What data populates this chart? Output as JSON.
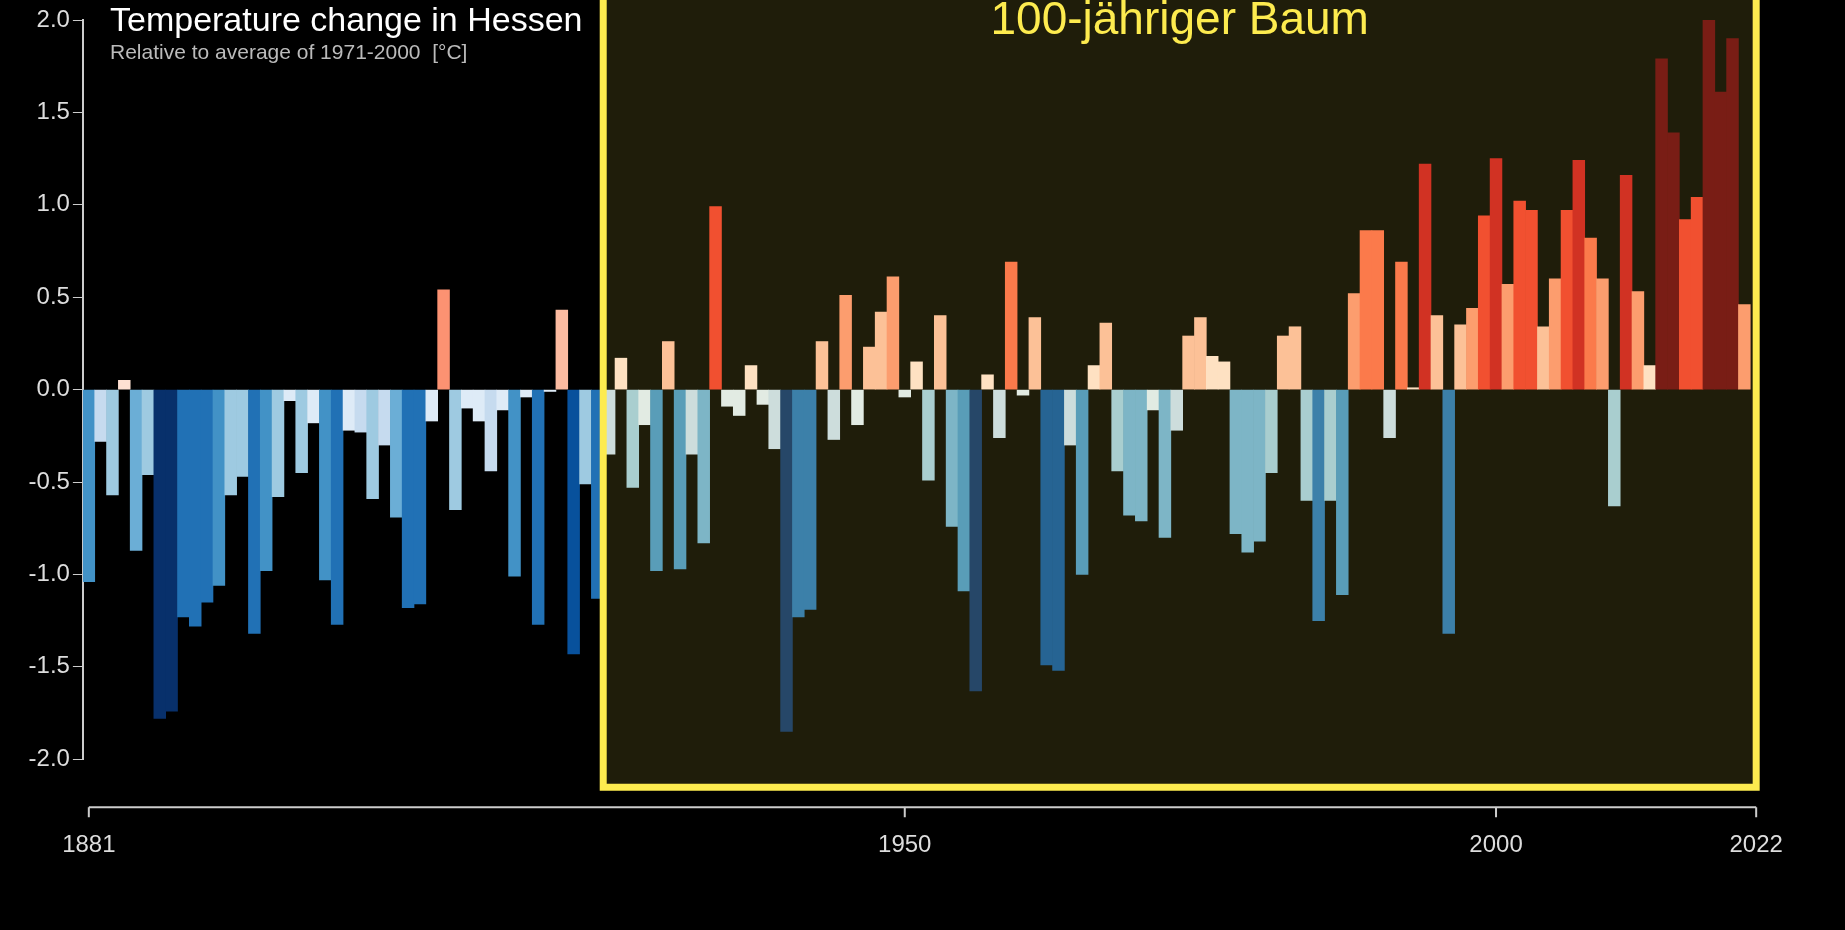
{
  "chart_data": {
    "type": "bar",
    "title": "Temperature change in Hessen",
    "subtitle": "Relative to average of 1971-2000  [°C]",
    "x": [
      1881,
      1882,
      1883,
      1884,
      1885,
      1886,
      1887,
      1888,
      1889,
      1890,
      1891,
      1892,
      1893,
      1894,
      1895,
      1896,
      1897,
      1898,
      1899,
      1900,
      1901,
      1902,
      1903,
      1904,
      1905,
      1906,
      1907,
      1908,
      1909,
      1910,
      1911,
      1912,
      1913,
      1914,
      1915,
      1916,
      1917,
      1918,
      1919,
      1920,
      1921,
      1922,
      1923,
      1924,
      1925,
      1926,
      1927,
      1928,
      1929,
      1930,
      1931,
      1932,
      1933,
      1934,
      1935,
      1936,
      1937,
      1938,
      1939,
      1940,
      1941,
      1942,
      1943,
      1944,
      1945,
      1946,
      1947,
      1948,
      1949,
      1950,
      1951,
      1952,
      1953,
      1954,
      1955,
      1956,
      1957,
      1958,
      1959,
      1960,
      1961,
      1962,
      1963,
      1964,
      1965,
      1966,
      1967,
      1968,
      1969,
      1970,
      1971,
      1972,
      1973,
      1974,
      1975,
      1976,
      1977,
      1978,
      1979,
      1980,
      1981,
      1982,
      1983,
      1984,
      1985,
      1986,
      1987,
      1988,
      1989,
      1990,
      1991,
      1992,
      1993,
      1994,
      1995,
      1996,
      1997,
      1998,
      1999,
      2000,
      2001,
      2002,
      2003,
      2004,
      2005,
      2006,
      2007,
      2008,
      2009,
      2010,
      2011,
      2012,
      2013,
      2014,
      2015,
      2016,
      2017,
      2018,
      2019,
      2020,
      2021
    ],
    "values": [
      -1.04,
      -0.28,
      -0.57,
      0.05,
      -0.87,
      -0.46,
      -1.78,
      -1.74,
      -1.23,
      -1.28,
      -1.15,
      -1.06,
      -0.57,
      -0.47,
      -1.32,
      -0.98,
      -0.58,
      -0.06,
      -0.45,
      -0.18,
      -1.03,
      -1.27,
      -0.22,
      -0.23,
      -0.59,
      -0.3,
      -0.69,
      -1.18,
      -1.16,
      -0.17,
      0.54,
      -0.65,
      -0.1,
      -0.17,
      -0.44,
      -0.11,
      -1.01,
      -0.04,
      -1.27,
      -0.01,
      0.43,
      -1.43,
      -0.51,
      -1.13,
      -0.35,
      0.17,
      -0.53,
      -0.19,
      -0.98,
      0.26,
      -0.97,
      -0.35,
      -0.83,
      0.99,
      -0.09,
      -0.14,
      0.13,
      -0.08,
      -0.32,
      -1.85,
      -1.23,
      -1.19,
      0.26,
      -0.27,
      0.51,
      -0.19,
      0.23,
      0.42,
      0.61,
      -0.04,
      0.15,
      -0.49,
      0.4,
      -0.74,
      -1.09,
      -1.63,
      0.08,
      -0.26,
      0.69,
      -0.03,
      0.39,
      -1.49,
      -1.52,
      -0.3,
      -1.0,
      0.13,
      0.36,
      -0.44,
      -0.68,
      -0.71,
      -0.11,
      -0.8,
      -0.22,
      0.29,
      0.39,
      0.18,
      0.15,
      -0.78,
      -0.88,
      -0.82,
      -0.45,
      0.29,
      0.34,
      -0.6,
      -1.25,
      -0.6,
      -1.11,
      0.52,
      0.86,
      0.86,
      -0.26,
      0.69,
      0.01,
      1.22,
      0.4,
      -1.32,
      0.35,
      0.44,
      0.94,
      1.25,
      0.57,
      1.02,
      0.97,
      0.34,
      0.6,
      0.97,
      1.24,
      0.82,
      0.6,
      -0.63,
      1.16,
      0.53,
      0.13,
      1.79,
      1.39,
      0.92,
      1.04,
      2.0,
      1.61,
      1.9,
      0.46
    ],
    "colors": [
      "#4292c6",
      "#c6dbef",
      "#9ecae1",
      "#fee0d2",
      "#6baed6",
      "#9ecae1",
      "#08306b",
      "#08306b",
      "#2171b5",
      "#2171b5",
      "#2171b5",
      "#4292c6",
      "#9ecae1",
      "#9ecae1",
      "#2171b5",
      "#4292c6",
      "#9ecae1",
      "#deebf7",
      "#9ecae1",
      "#deebf7",
      "#4292c6",
      "#2171b5",
      "#deebf7",
      "#c6dbef",
      "#9ecae1",
      "#c6dbef",
      "#6baed6",
      "#2171b5",
      "#2171b5",
      "#deebf7",
      "#fc9272",
      "#9ecae1",
      "#deebf7",
      "#deebf7",
      "#c6dbef",
      "#deebf7",
      "#4292c6",
      "#deebf7",
      "#2171b5",
      "#deebf7",
      "#fcbba1",
      "#08519c",
      "#9ecae1",
      "#2171b5",
      "#c6dbef",
      "#fee0d2",
      "#9ecae1",
      "#deebf7",
      "#4292c6",
      "#fcbba1",
      "#4292c6",
      "#c6dbef",
      "#6baed6",
      "#ef3b2c",
      "#deebf7",
      "#deebf7",
      "#fee0d2",
      "#deebf7",
      "#c6dbef",
      "#08306b",
      "#2171b5",
      "#2171b5",
      "#fcbba1",
      "#c6dbef",
      "#fc9272",
      "#deebf7",
      "#fcbba1",
      "#fcbba1",
      "#fc9272",
      "#deebf7",
      "#fee0d2",
      "#9ecae1",
      "#fcbba1",
      "#6baed6",
      "#4292c6",
      "#08306b",
      "#fee0d2",
      "#c6dbef",
      "#fb6a4a",
      "#deebf7",
      "#fcbba1",
      "#08519c",
      "#08519c",
      "#c6dbef",
      "#4292c6",
      "#fee0d2",
      "#fcbba1",
      "#9ecae1",
      "#6baed6",
      "#6baed6",
      "#deebf7",
      "#6baed6",
      "#c6dbef",
      "#fcbba1",
      "#fcbba1",
      "#fee0d2",
      "#fee0d2",
      "#6baed6",
      "#6baed6",
      "#6baed6",
      "#9ecae1",
      "#fcbba1",
      "#fcbba1",
      "#9ecae1",
      "#2171b5",
      "#9ecae1",
      "#4292c6",
      "#fc9272",
      "#fb6a4a",
      "#fb6a4a",
      "#c6dbef",
      "#fb6a4a",
      "#fee0d2",
      "#cb181d",
      "#fcbba1",
      "#2171b5",
      "#fcbba1",
      "#fc9272",
      "#ef3b2c",
      "#cb181d",
      "#fc9272",
      "#ef3b2c",
      "#ef3b2c",
      "#fcbba1",
      "#fc9272",
      "#ef3b2c",
      "#cb181d",
      "#fb6a4a",
      "#fc9272",
      "#9ecae1",
      "#cb181d",
      "#fc9272",
      "#fee0d2",
      "#67000d",
      "#67000d",
      "#ef3b2c",
      "#ef3b2c",
      "#67000d",
      "#67000d",
      "#67000d",
      "#fc9272"
    ],
    "xlim": [
      1880.5,
      2022.5
    ],
    "xticks": [
      1881,
      1950,
      2000,
      2022
    ],
    "ylim": [
      -2.0,
      2.0
    ],
    "yticks": [
      {
        "value": -2,
        "label": "-2.0"
      },
      {
        "value": -1.5,
        "label": "-1.5"
      },
      {
        "value": -1,
        "label": "-1.0"
      },
      {
        "value": -0.5,
        "label": "-0.5"
      },
      {
        "value": 0,
        "label": "0.0"
      },
      {
        "value": 0.5,
        "label": "0.5"
      },
      {
        "value": 1,
        "label": "1.0"
      },
      {
        "value": 1.5,
        "label": "1.5"
      },
      {
        "value": 2,
        "label": "2.0"
      }
    ],
    "bands": [
      {
        "axis": "x",
        "from": 1924.5,
        "to": 2022,
        "label": "100-jähriger Baum",
        "color": "#fdeb4f"
      }
    ]
  }
}
